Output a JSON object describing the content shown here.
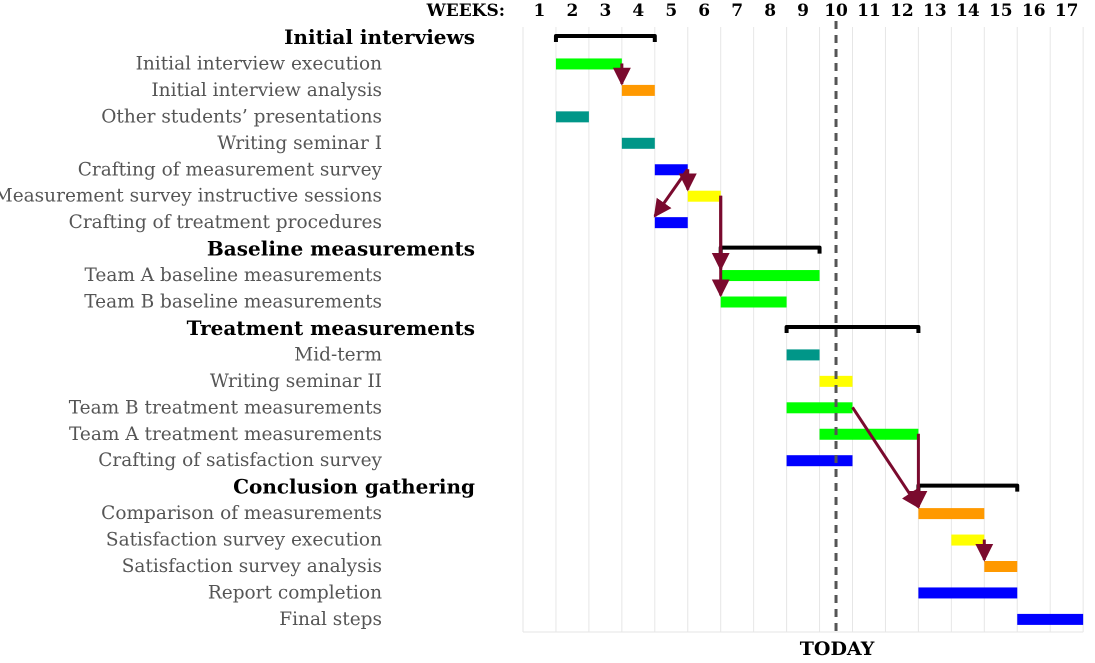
{
  "chart_data": {
    "type": "gantt",
    "weeks_label": "WEEKS:",
    "weeks": [
      "1",
      "2",
      "3",
      "4",
      "5",
      "6",
      "7",
      "8",
      "9",
      "10",
      "11",
      "12",
      "13",
      "14",
      "15",
      "16",
      "17"
    ],
    "today_label": "TODAY",
    "today_week": 9.5,
    "grid": true,
    "rows": [
      {
        "kind": "group",
        "label": "Initial interviews",
        "start": 1,
        "end": 4
      },
      {
        "kind": "task",
        "label": "Initial interview execution",
        "start": 1,
        "end": 3,
        "color": "#00ff00"
      },
      {
        "kind": "task",
        "label": "Initial interview analysis",
        "start": 3,
        "end": 4,
        "color": "#ff9900"
      },
      {
        "kind": "task",
        "label": "Other students’ presentations",
        "start": 1,
        "end": 2,
        "color": "#009688"
      },
      {
        "kind": "task",
        "label": "Writing seminar I",
        "start": 3,
        "end": 4,
        "color": "#009688"
      },
      {
        "kind": "task",
        "label": "Crafting of measurement survey",
        "start": 4,
        "end": 5,
        "color": "#0000ff"
      },
      {
        "kind": "task",
        "label": "Measurement survey instructive sessions",
        "start": 5,
        "end": 6,
        "color": "#ffff00"
      },
      {
        "kind": "task",
        "label": "Crafting of treatment procedures",
        "start": 4,
        "end": 5,
        "color": "#0000ff"
      },
      {
        "kind": "group",
        "label": "Baseline measurements",
        "start": 6,
        "end": 9
      },
      {
        "kind": "task",
        "label": "Team A baseline measurements",
        "start": 6,
        "end": 9,
        "color": "#00ff00"
      },
      {
        "kind": "task",
        "label": "Team B baseline measurements",
        "start": 6,
        "end": 8,
        "color": "#00ff00"
      },
      {
        "kind": "group",
        "label": "Treatment measurements",
        "start": 8,
        "end": 12
      },
      {
        "kind": "task",
        "label": "Mid-term",
        "start": 8,
        "end": 9,
        "color": "#009688"
      },
      {
        "kind": "task",
        "label": "Writing seminar II",
        "start": 9,
        "end": 10,
        "color": "#ffff00"
      },
      {
        "kind": "task",
        "label": "Team B treatment measurements",
        "start": 8,
        "end": 10,
        "color": "#00ff00"
      },
      {
        "kind": "task",
        "label": "Team A treatment measurements",
        "start": 9,
        "end": 12,
        "color": "#00ff00"
      },
      {
        "kind": "task",
        "label": "Crafting of satisfaction survey",
        "start": 8,
        "end": 10,
        "color": "#0000ff"
      },
      {
        "kind": "group",
        "label": "Conclusion gathering",
        "start": 12,
        "end": 15
      },
      {
        "kind": "task",
        "label": "Comparison of measurements",
        "start": 12,
        "end": 14,
        "color": "#ff9900"
      },
      {
        "kind": "task",
        "label": "Satisfaction survey execution",
        "start": 13,
        "end": 14,
        "color": "#ffff00"
      },
      {
        "kind": "task",
        "label": "Satisfaction survey analysis",
        "start": 14,
        "end": 15,
        "color": "#ff9900"
      },
      {
        "kind": "task",
        "label": "Report completion",
        "start": 12,
        "end": 15,
        "color": "#0000ff"
      },
      {
        "kind": "task",
        "label": "Final steps",
        "start": 15,
        "end": 17,
        "color": "#0000ff"
      }
    ],
    "dependencies": [
      {
        "from": 1,
        "to": 2
      },
      {
        "from": 5,
        "to": 6
      },
      {
        "from": 5,
        "to": 7
      },
      {
        "from": 6,
        "to": 9
      },
      {
        "from": 6,
        "to": 10
      },
      {
        "from": 14,
        "to": 18
      },
      {
        "from": 15,
        "to": 18
      },
      {
        "from": 19,
        "to": 20
      }
    ],
    "colors": {
      "arrow": "#7a0a2e",
      "grid": "#e6e6e6",
      "today_line": "#555555",
      "group_bar": "#000000"
    }
  }
}
